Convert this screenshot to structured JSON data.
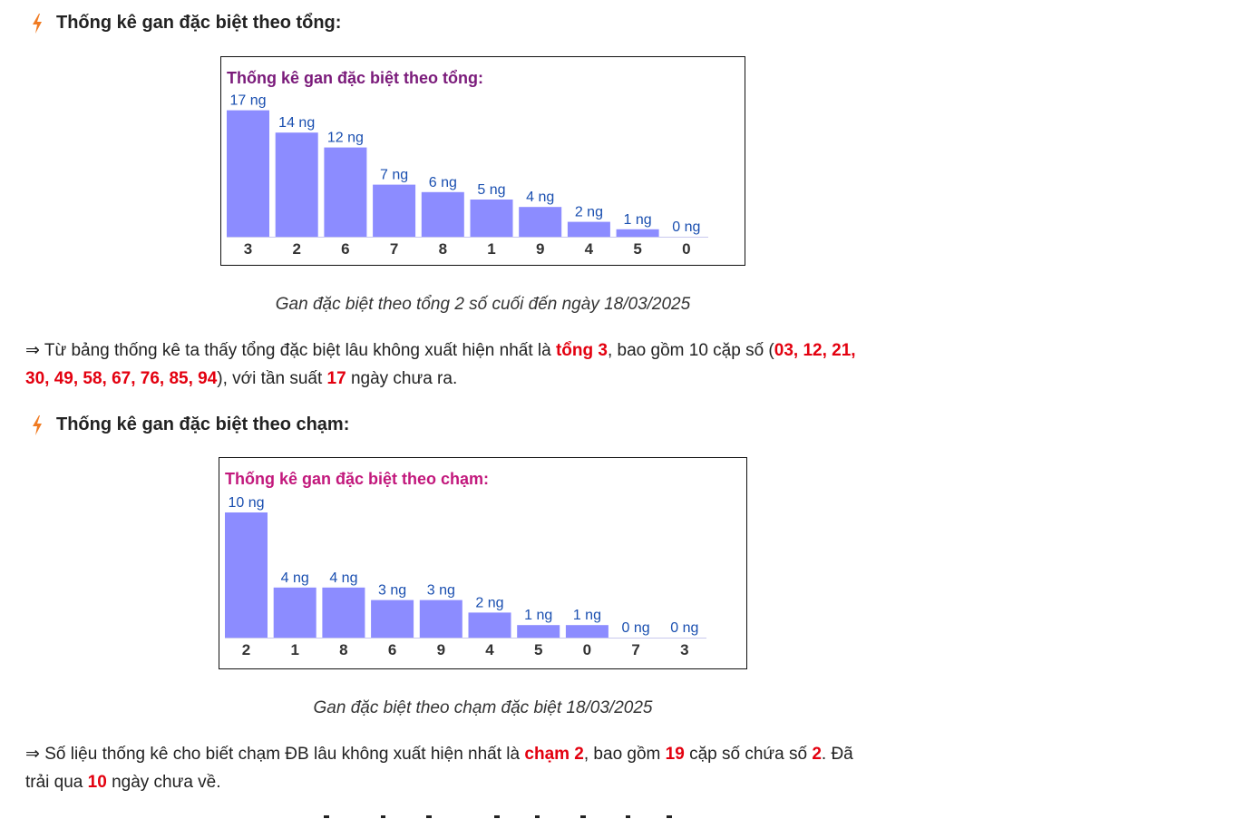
{
  "section1": {
    "heading": "Thống kê gan đặc biệt theo tổng:",
    "caption": "Gan đặc biệt theo tổng 2 số cuối đến ngày 18/03/2025",
    "para": {
      "t1": "⇒ Từ bảng thống kê ta thấy tổng đặc biệt lâu không xuất hiện nhất là ",
      "r1": "tổng 3",
      "t2": ", bao gồm 10 cặp số (",
      "r2": "03, 12, 21,",
      "r3": "30, 49, 58, 67, 76, 85, 94",
      "t3": "), với tần suất ",
      "r4": "17",
      "t4": " ngày chưa ra."
    }
  },
  "section2": {
    "heading": "Thống kê gan đặc biệt theo chạm:",
    "caption": "Gan đặc biệt theo chạm đặc biệt 18/03/2025",
    "para": {
      "t1": "⇒ Số liệu thống kê cho biết chạm ĐB lâu không xuất hiện nhất là ",
      "r1": "chạm 2",
      "t2": ", bao gồm ",
      "r2": "19",
      "t3": " cặp số chứa số ",
      "r3": "2",
      "t4": ". Đã",
      "t5": "trải qua ",
      "r4": "10",
      "t6": " ngày chưa về."
    }
  },
  "colors": {
    "bar": "#8c8cff",
    "title1": "#7a1a7a",
    "title2": "#c2187c",
    "value": "#1a4fb0",
    "red": "#e3000f",
    "icon": "#f07b22"
  },
  "icons": {
    "heading": "bolt-icon"
  },
  "chart_data": [
    {
      "type": "bar",
      "title": "Thống kê gan đặc biệt theo tổng:",
      "categories": [
        "3",
        "2",
        "6",
        "7",
        "8",
        "1",
        "9",
        "4",
        "5",
        "0"
      ],
      "values": [
        17,
        14,
        12,
        7,
        6,
        5,
        4,
        2,
        1,
        0
      ],
      "data_labels": [
        "17 ng",
        "14 ng",
        "12 ng",
        "7 ng",
        "6 ng",
        "5 ng",
        "4 ng",
        "2 ng",
        "1 ng",
        "0 ng"
      ],
      "ylim": [
        0,
        17
      ]
    },
    {
      "type": "bar",
      "title": "Thống kê gan đặc biệt theo chạm:",
      "categories": [
        "2",
        "1",
        "8",
        "6",
        "9",
        "4",
        "5",
        "0",
        "7",
        "3"
      ],
      "values": [
        10,
        4,
        4,
        3,
        3,
        2,
        1,
        1,
        0,
        0
      ],
      "data_labels": [
        "10 ng",
        "4 ng",
        "4 ng",
        "3 ng",
        "3 ng",
        "2 ng",
        "1 ng",
        "1 ng",
        "0 ng",
        "0 ng"
      ],
      "ylim": [
        0,
        10
      ]
    }
  ]
}
